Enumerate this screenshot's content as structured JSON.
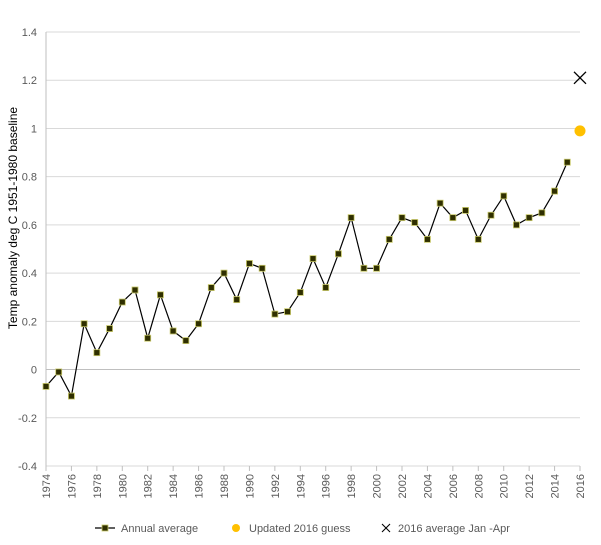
{
  "chart_data": {
    "type": "line",
    "title": "",
    "xlabel": "",
    "ylabel": "Temp anomaly deg C 1951-1980 baseline",
    "ylim": [
      -0.4,
      1.4
    ],
    "xlim": [
      1974,
      2016
    ],
    "yticks": [
      "1.4",
      "1.2",
      "1",
      "0.8",
      "0.6",
      "0.4",
      "0.2",
      "0",
      "-0.2",
      "-0.4"
    ],
    "ytick_values": [
      1.4,
      1.2,
      1.0,
      0.8,
      0.6,
      0.4,
      0.2,
      0.0,
      -0.2,
      -0.4
    ],
    "xticks": [
      "1974",
      "1976",
      "1978",
      "1980",
      "1982",
      "1984",
      "1986",
      "1988",
      "1990",
      "1992",
      "1994",
      "1996",
      "1998",
      "2000",
      "2002",
      "2004",
      "2006",
      "2008",
      "2010",
      "2012",
      "2014",
      "2016"
    ],
    "xtick_values": [
      1974,
      1976,
      1978,
      1980,
      1982,
      1984,
      1986,
      1988,
      1990,
      1992,
      1994,
      1996,
      1998,
      2000,
      2002,
      2004,
      2006,
      2008,
      2010,
      2012,
      2014,
      2016
    ],
    "grid": true,
    "legend_position": "bottom",
    "series": [
      {
        "name": "Annual average",
        "style": "line-square",
        "color": "#000000",
        "marker_fill": "#2f2f00",
        "marker_edge": "#c9c96a",
        "x": [
          1974,
          1975,
          1976,
          1977,
          1978,
          1979,
          1980,
          1981,
          1982,
          1983,
          1984,
          1985,
          1986,
          1987,
          1988,
          1989,
          1990,
          1991,
          1992,
          1993,
          1994,
          1995,
          1996,
          1997,
          1998,
          1999,
          2000,
          2001,
          2002,
          2003,
          2004,
          2005,
          2006,
          2007,
          2008,
          2009,
          2010,
          2011,
          2012,
          2013,
          2014,
          2015
        ],
        "values": [
          -0.07,
          -0.01,
          -0.11,
          0.19,
          0.07,
          0.17,
          0.28,
          0.33,
          0.13,
          0.31,
          0.16,
          0.12,
          0.19,
          0.34,
          0.4,
          0.29,
          0.44,
          0.42,
          0.23,
          0.24,
          0.32,
          0.46,
          0.34,
          0.48,
          0.63,
          0.42,
          0.42,
          0.54,
          0.63,
          0.61,
          0.54,
          0.69,
          0.63,
          0.66,
          0.54,
          0.64,
          0.72,
          0.6,
          0.63,
          0.65,
          0.74,
          0.86
        ]
      },
      {
        "name": "Updated 2016 guess",
        "style": "circle",
        "color": "#ffc000",
        "x": [
          2016
        ],
        "values": [
          0.99
        ]
      },
      {
        "name": "2016 average Jan -Apr",
        "style": "x",
        "color": "#000000",
        "x": [
          2016
        ],
        "values": [
          1.21
        ]
      }
    ]
  }
}
